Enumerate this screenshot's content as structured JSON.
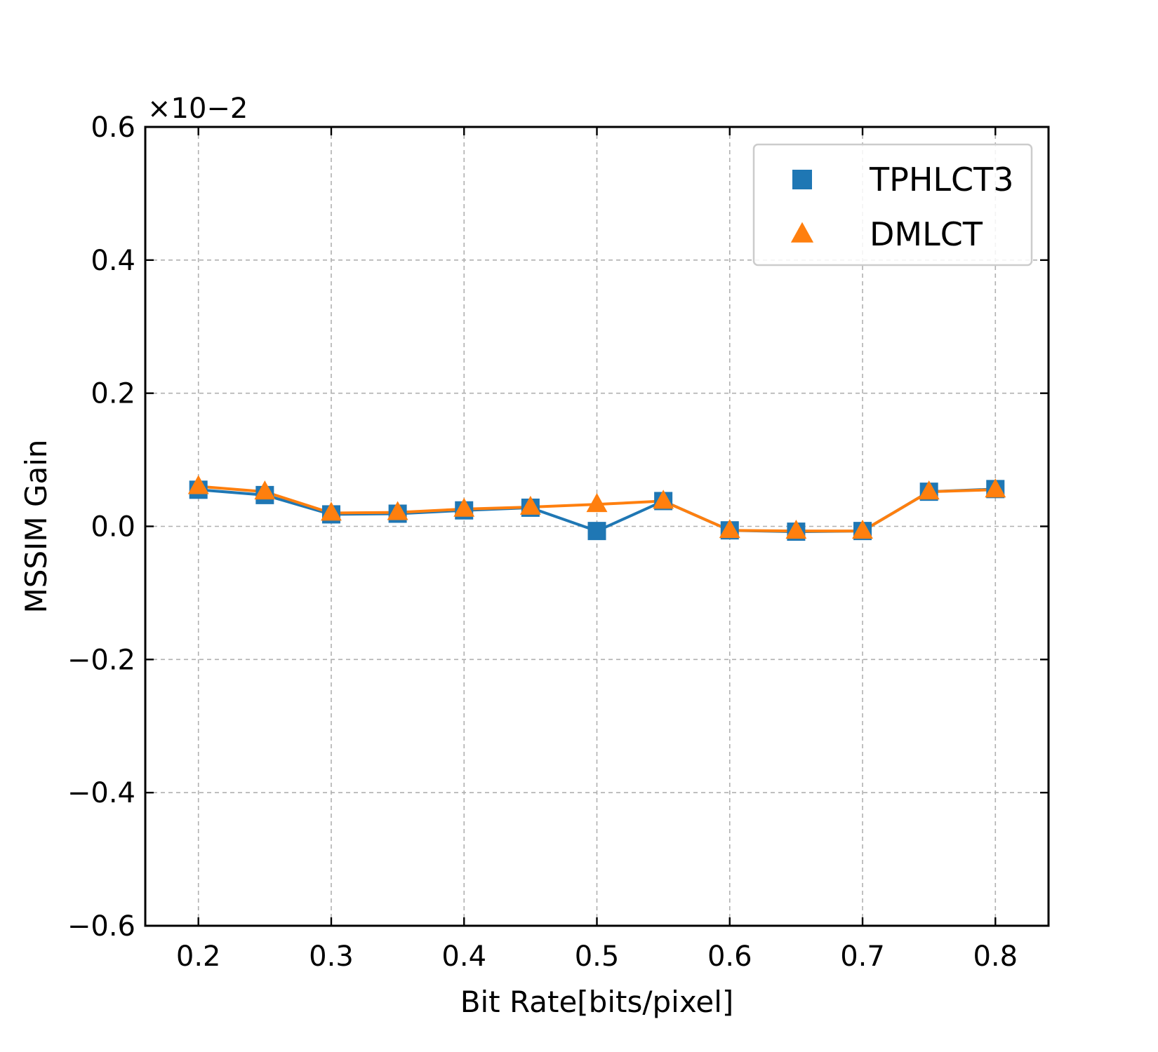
{
  "chart_data": {
    "type": "line",
    "title": "",
    "xlabel": "Bit Rate[bits/pixel]",
    "ylabel": "MSSIM Gain",
    "xlim": [
      0.16,
      0.84
    ],
    "ylim": [
      -0.6,
      0.6
    ],
    "y_scale_multiplier": "×10−2",
    "xticks": [
      "0.2",
      "0.3",
      "0.4",
      "0.5",
      "0.6",
      "0.7",
      "0.8"
    ],
    "yticks": [
      "0.6",
      "0.4",
      "0.2",
      "0.0",
      "−0.2",
      "−0.4",
      "−0.6"
    ],
    "grid": true,
    "legend_position": "top-right",
    "x": [
      0.2,
      0.25,
      0.3,
      0.35,
      0.4,
      0.45,
      0.5,
      0.55,
      0.6,
      0.65,
      0.7,
      0.75,
      0.8
    ],
    "series": [
      {
        "name": "TPHLCT3",
        "marker": "square",
        "color": "#1f77b4",
        "values": [
          0.055,
          0.047,
          0.018,
          0.019,
          0.024,
          0.028,
          -0.007,
          0.038,
          -0.006,
          -0.008,
          -0.007,
          0.052,
          0.056
        ]
      },
      {
        "name": "DMLCT",
        "marker": "triangle",
        "color": "#ff7f0e",
        "values": [
          0.06,
          0.052,
          0.02,
          0.021,
          0.026,
          0.029,
          0.033,
          0.038,
          -0.006,
          -0.007,
          -0.007,
          0.052,
          0.055
        ]
      }
    ]
  }
}
